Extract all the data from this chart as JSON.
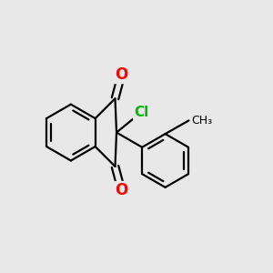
{
  "bg_color": "#e8e8e8",
  "bond_color": "#000000",
  "O_color": "#ff0000",
  "Cl_color": "#00bb00",
  "line_width": 1.6,
  "font_size_O": 12,
  "font_size_Cl": 11,
  "font_size_methyl": 9,
  "fig_size": [
    3.0,
    3.0
  ],
  "dpi": 100,
  "xlim": [
    0.0,
    1.0
  ],
  "ylim": [
    0.05,
    0.95
  ]
}
